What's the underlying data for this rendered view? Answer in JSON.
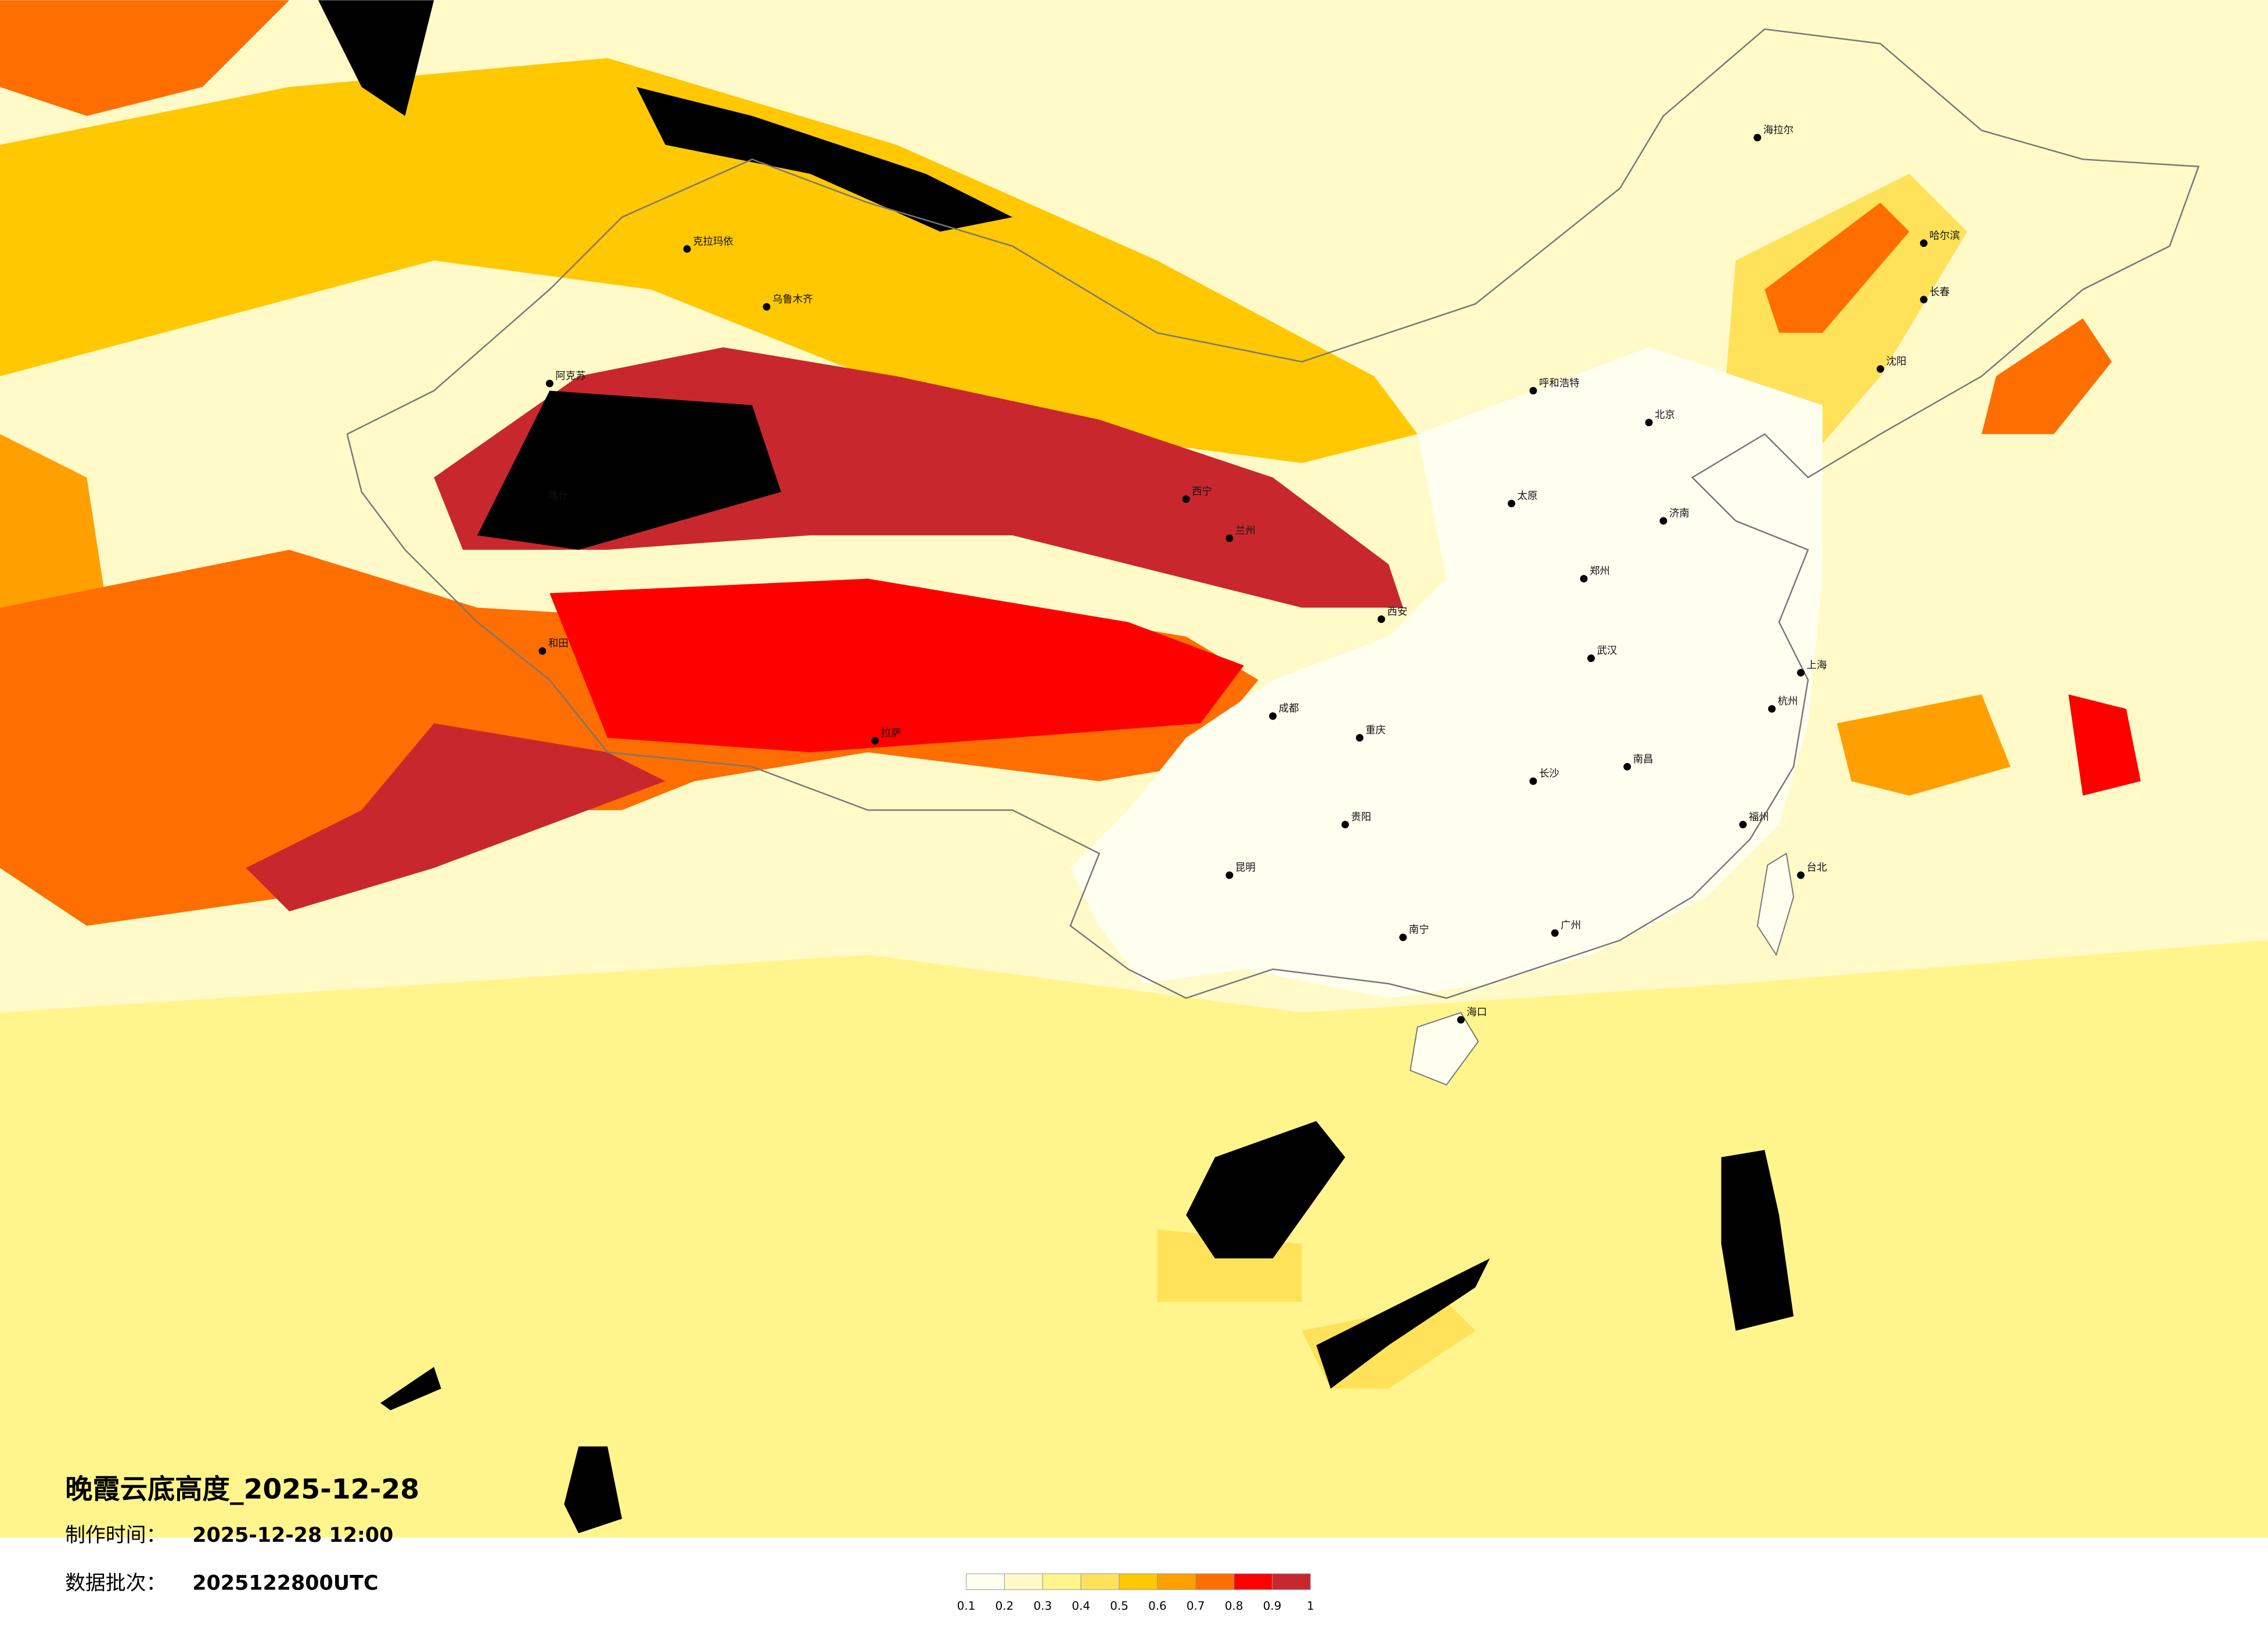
{
  "title": "晚霞云底高度_2025-12-28",
  "info": [
    {
      "label": "制作时间：",
      "value": "2025-12-28 12:00"
    },
    {
      "label": "数据批次：",
      "value": "2025122800UTC"
    }
  ],
  "colorbar": {
    "ticks": [
      0.1,
      0.2,
      0.3,
      0.4,
      0.5,
      0.6,
      0.7,
      0.8,
      0.9,
      1
    ],
    "colors": [
      "#fffff0",
      "#fffac8",
      "#fff58c",
      "#ffe15a",
      "#ffc800",
      "#ffa000",
      "#ff6e00",
      "#ff0000",
      "#c8282d"
    ]
  },
  "cities": [
    "克拉玛依",
    "乌鲁木齐",
    "阿克苏",
    "喀什",
    "和田",
    "拉萨",
    "西宁",
    "兰州",
    "呼和浩特",
    "北京",
    "海拉尔",
    "哈尔滨",
    "长春",
    "沈阳",
    "济南",
    "太原",
    "郑州",
    "西安",
    "武汉",
    "上海",
    "杭州",
    "成都",
    "重庆",
    "贵阳",
    "昆明",
    "长沙",
    "南昌",
    "福州",
    "广州",
    "南宁",
    "海口",
    "台北"
  ]
}
